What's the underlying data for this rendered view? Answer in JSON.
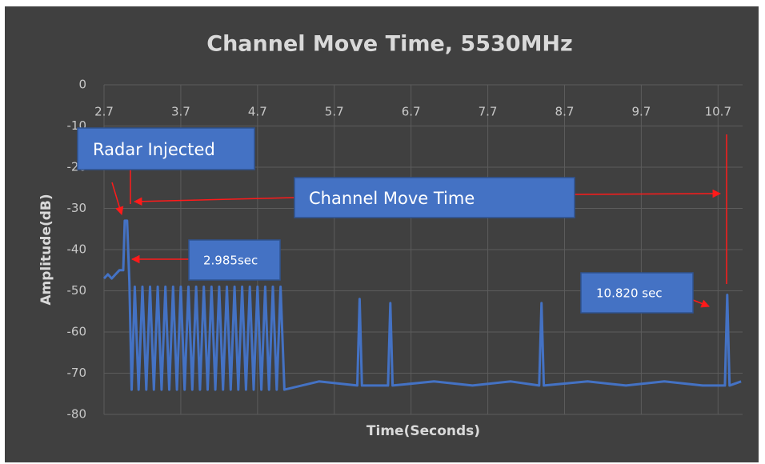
{
  "chart_data": {
    "type": "line",
    "title": "Channel Move Time, 5530MHz",
    "x_label": "Time(Seconds)",
    "y_label": "Amplitude(dB)",
    "annotations": [
      "Radar Injected",
      "Channel Move Time",
      "2.985sec",
      "10.820 sec"
    ],
    "xlim": [
      2.7,
      11.02
    ],
    "ylim": [
      -80,
      0
    ],
    "xticks": [
      2.7,
      3.7,
      4.7,
      5.7,
      6.7,
      7.7,
      8.7,
      9.7,
      10.7
    ],
    "yticks": [
      0,
      -10,
      -20,
      -30,
      -40,
      -50,
      -60,
      -70,
      -80
    ],
    "grid": true,
    "series": [
      {
        "name": "Amplitude",
        "color": "#4472c4",
        "x": [
          2.7,
          2.75,
          2.8,
          2.85,
          2.9,
          2.95,
          2.97,
          3.0,
          3.03,
          3.06,
          3.1,
          3.15,
          3.2,
          3.25,
          3.3,
          3.35,
          3.4,
          3.45,
          3.5,
          3.55,
          3.6,
          3.65,
          3.7,
          3.75,
          3.8,
          3.85,
          3.9,
          3.95,
          4.0,
          4.05,
          4.1,
          4.15,
          4.2,
          4.25,
          4.3,
          4.35,
          4.4,
          4.45,
          4.5,
          4.55,
          4.6,
          4.65,
          4.7,
          4.75,
          4.8,
          4.85,
          4.9,
          4.95,
          5.0,
          5.05,
          5.5,
          6.0,
          6.03,
          6.06,
          6.4,
          6.43,
          6.46,
          7.0,
          7.5,
          8.0,
          8.37,
          8.4,
          8.43,
          9.0,
          9.5,
          10.0,
          10.5,
          10.79,
          10.82,
          10.85,
          11.0
        ],
        "values": [
          -47,
          -46,
          -47,
          -46,
          -45,
          -45,
          -33,
          -33,
          -48,
          -74,
          -49,
          -74,
          -49,
          -74,
          -49,
          -74,
          -49,
          -74,
          -49,
          -74,
          -49,
          -74,
          -49,
          -74,
          -49,
          -74,
          -49,
          -74,
          -49,
          -74,
          -49,
          -74,
          -49,
          -74,
          -49,
          -74,
          -49,
          -74,
          -49,
          -74,
          -49,
          -74,
          -49,
          -74,
          -49,
          -74,
          -49,
          -74,
          -49,
          -74,
          -72,
          -73,
          -52,
          -73,
          -73,
          -53,
          -73,
          -72,
          -73,
          -72,
          -73,
          -53,
          -73,
          -72,
          -73,
          -72,
          -73,
          -73,
          -51,
          -73,
          -72
        ]
      }
    ]
  }
}
